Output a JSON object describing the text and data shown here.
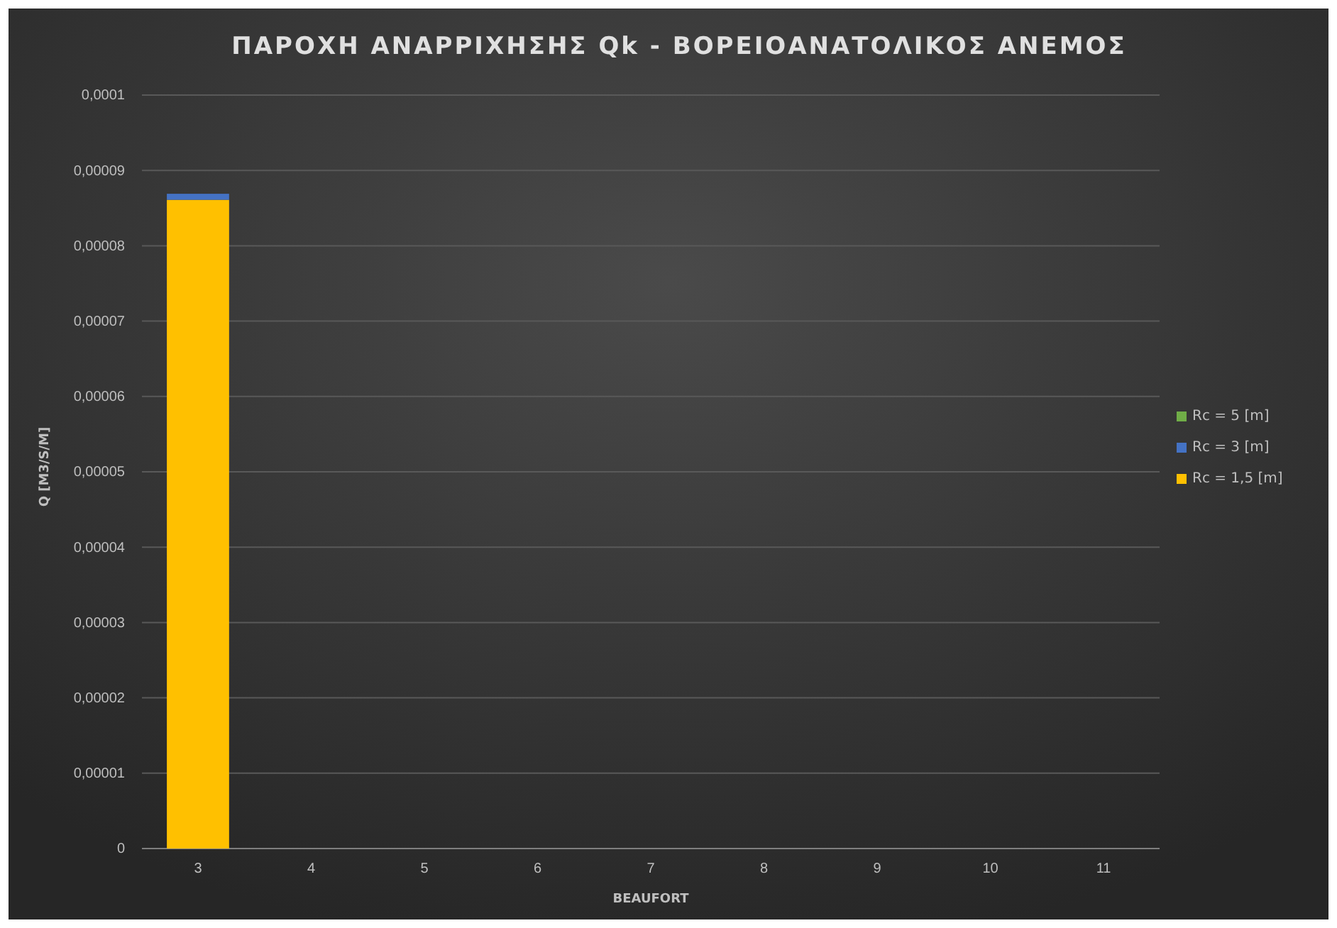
{
  "chart_data": {
    "type": "bar",
    "title": "ΠΑΡΟΧΗ ΑΝΑΡΡΙΧΗΣΗΣ Qk - ΒΟΡΕΙΟΑΝΑΤΟΛΙΚΟΣ ΑΝΕΜΟΣ",
    "xlabel": "BEAUFORT",
    "ylabel": "Q [M3/S/M]",
    "categories": [
      "3",
      "4",
      "5",
      "6",
      "7",
      "8",
      "9",
      "10",
      "11"
    ],
    "stacked": true,
    "series": [
      {
        "name": "Rc = 1,5 [m]",
        "color": "#ffc000",
        "values": [
          8.61e-05,
          0,
          0,
          0,
          0,
          0,
          0,
          0,
          0
        ]
      },
      {
        "name": "Rc = 3 [m]",
        "color": "#4472c4",
        "values": [
          8e-07,
          0,
          0,
          0,
          0,
          0,
          0,
          0,
          0
        ]
      },
      {
        "name": "Rc = 5 [m]",
        "color": "#70ad47",
        "values": [
          0,
          0,
          0,
          0,
          0,
          0,
          0,
          0,
          0
        ]
      }
    ],
    "ylim": [
      0,
      0.0001
    ],
    "yticks": [
      {
        "value": 0,
        "label": "0"
      },
      {
        "value": 1e-05,
        "label": "0,00001"
      },
      {
        "value": 2e-05,
        "label": "0,00002"
      },
      {
        "value": 3e-05,
        "label": "0,00003"
      },
      {
        "value": 4e-05,
        "label": "0,00004"
      },
      {
        "value": 5e-05,
        "label": "0,00005"
      },
      {
        "value": 6e-05,
        "label": "0,00006"
      },
      {
        "value": 7e-05,
        "label": "0,00007"
      },
      {
        "value": 8e-05,
        "label": "0,00008"
      },
      {
        "value": 9e-05,
        "label": "0,00009"
      },
      {
        "value": 0.0001,
        "label": "0,0001"
      }
    ],
    "grid": "y",
    "legend": "right"
  }
}
